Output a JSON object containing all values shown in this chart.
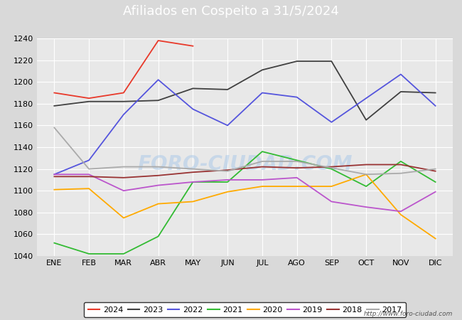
{
  "title": "Afiliados en Cospeito a 31/5/2024",
  "title_bg_color": "#5b9bd5",
  "title_text_color": "white",
  "ylim": [
    1040,
    1240
  ],
  "yticks": [
    1040,
    1060,
    1080,
    1100,
    1120,
    1140,
    1160,
    1180,
    1200,
    1220,
    1240
  ],
  "months": [
    "ENE",
    "FEB",
    "MAR",
    "ABR",
    "MAY",
    "JUN",
    "JUL",
    "AGO",
    "SEP",
    "OCT",
    "NOV",
    "DIC"
  ],
  "outer_bg_color": "#d9d9d9",
  "plot_bg_color": "#e8e8e8",
  "watermark": "http://www.foro-ciudad.com",
  "watermark_text": "FORO-CIUDAD.COM",
  "series": {
    "2024": {
      "color": "#e8392a",
      "data": [
        1190,
        1185,
        1190,
        1238,
        1233,
        null,
        null,
        null,
        null,
        null,
        null,
        null
      ]
    },
    "2023": {
      "color": "#404040",
      "data": [
        1178,
        1182,
        1182,
        1183,
        1194,
        1193,
        1211,
        1219,
        1219,
        1165,
        1191,
        1190
      ]
    },
    "2022": {
      "color": "#5555dd",
      "data": [
        1115,
        1128,
        1170,
        1202,
        1175,
        1160,
        1190,
        1186,
        1163,
        1185,
        1207,
        1178
      ]
    },
    "2021": {
      "color": "#33bb33",
      "data": [
        1052,
        1042,
        1042,
        1058,
        1108,
        1108,
        1136,
        1128,
        1120,
        1104,
        1127,
        1108
      ]
    },
    "2020": {
      "color": "#ffaa00",
      "data": [
        1101,
        1102,
        1075,
        1088,
        1090,
        1099,
        1104,
        1104,
        1104,
        1115,
        1078,
        1056
      ]
    },
    "2019": {
      "color": "#bb55cc",
      "data": [
        1115,
        1115,
        1100,
        1105,
        1108,
        1110,
        1110,
        1112,
        1090,
        1085,
        1081,
        1099
      ]
    },
    "2018": {
      "color": "#993333",
      "data": [
        1113,
        1113,
        1112,
        1114,
        1117,
        1119,
        1122,
        1121,
        1122,
        1124,
        1124,
        1118
      ]
    },
    "2017": {
      "color": "#aaaaaa",
      "data": [
        1158,
        1120,
        1122,
        1122,
        1120,
        1118,
        1127,
        1127,
        1121,
        1115,
        1116,
        1120
      ]
    }
  }
}
